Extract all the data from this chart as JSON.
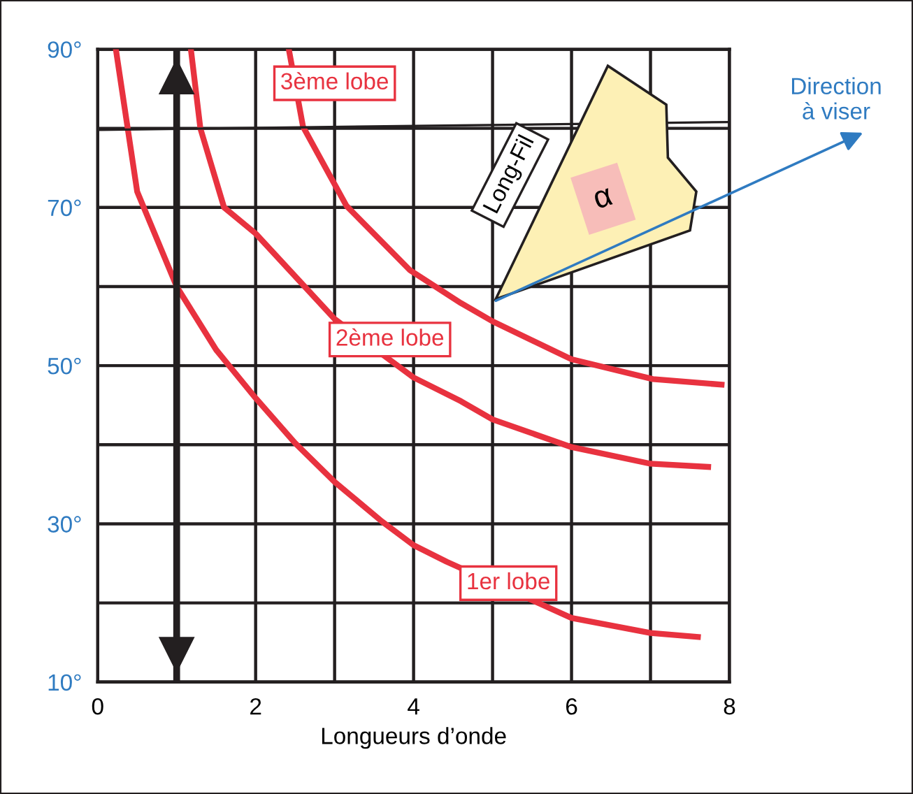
{
  "chart_data": {
    "type": "line",
    "xlabel": "Longueurs d’onde",
    "xlim": [
      0,
      8
    ],
    "ylim": [
      10,
      90
    ],
    "xticks": [
      0,
      {
        "value": 1,
        "label": null
      },
      2,
      {
        "value": 3,
        "label": null
      },
      4,
      {
        "value": 5,
        "label": null
      },
      6,
      {
        "value": 7,
        "label": null
      },
      8
    ],
    "yticks": [
      {
        "value": 10,
        "label": "10°"
      },
      {
        "value": 20,
        "label": null
      },
      {
        "value": 30,
        "label": "30°"
      },
      {
        "value": 40,
        "label": null
      },
      {
        "value": 50,
        "label": "50°"
      },
      {
        "value": 60,
        "label": null
      },
      {
        "value": 70,
        "label": "70°"
      },
      {
        "value": 80,
        "label": null
      },
      {
        "value": 90,
        "label": "90°"
      }
    ],
    "grid": true,
    "ref_lines": [
      {
        "axis": "x",
        "value": 1,
        "color": "#231f20"
      }
    ],
    "marker": "none",
    "line_style": "solid",
    "series": [
      {
        "color": "#e8323f",
        "x": [
          0.23,
          0.5,
          1.0,
          1.5,
          2.0,
          2.5,
          3.0,
          3.6,
          4.0,
          4.42,
          5.6,
          6.0,
          7.0,
          7.6
        ],
        "values": [
          90,
          72,
          60,
          52,
          45.9,
          40.2,
          35.3,
          30.3,
          27.3,
          25.2,
          19.9,
          18.1,
          16.2,
          15.7
        ]
      },
      {
        "color": "#e8323f",
        "x": [
          1.18,
          1.3,
          1.6,
          2.0,
          3.0,
          4.0,
          4.6,
          5.0,
          6.0,
          7.0,
          7.73
        ],
        "values": [
          90,
          80,
          70,
          66.7,
          55.9,
          48.5,
          45.5,
          43.2,
          39.7,
          37.6,
          37.2
        ]
      },
      {
        "color": "#e8323f",
        "x": [
          2.42,
          2.6,
          3.15,
          3.95,
          4.6,
          5.0,
          6.0,
          7.03,
          7.9
        ],
        "values": [
          90,
          80.2,
          70.2,
          62.1,
          57.9,
          55.6,
          50.8,
          48.3,
          47.6
        ]
      },
      {
        "color": "#231f20",
        "x": [
          0,
          8
        ],
        "values": [
          79.8,
          80.8
        ]
      }
    ],
    "annotations": [
      "1er lobe",
      "2ème lobe",
      "3ème lobe",
      "Direction\nà viser",
      "Long-Fil",
      "α"
    ]
  }
}
